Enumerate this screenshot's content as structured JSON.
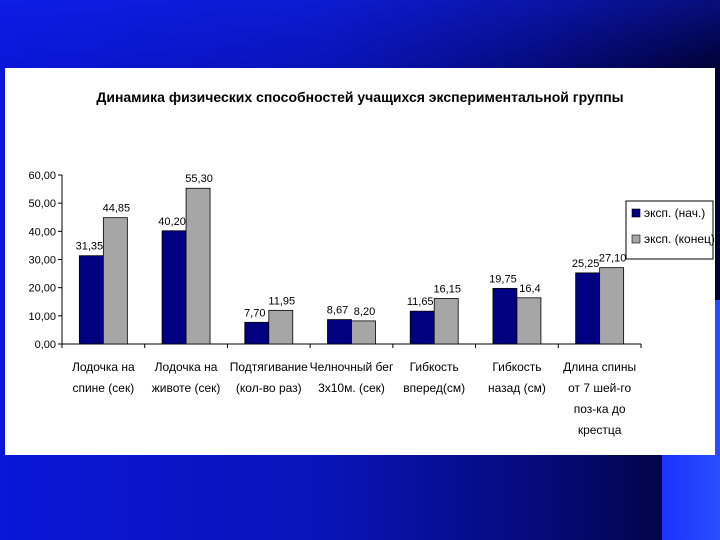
{
  "chart_data": {
    "type": "bar",
    "title": "Динамика физических способностей учащихся экспериментальной группы",
    "categories": [
      [
        "Лодочка на",
        "спине (сек)"
      ],
      [
        "Лодочка на",
        "животе (сек)"
      ],
      [
        "Подтягивание",
        "(кол-во раз)"
      ],
      [
        "Челночный бег",
        "3х10м. (сек)"
      ],
      [
        "Гибкость",
        "вперед(см)"
      ],
      [
        "Гибкость",
        "назад (см)"
      ],
      [
        "Длина спины",
        "от 7 шей-го",
        "поз-ка до",
        "крестца"
      ]
    ],
    "series": [
      {
        "name": "эксп. (нач.)",
        "color": "#000080",
        "values": [
          31.35,
          40.2,
          7.7,
          8.67,
          11.65,
          19.75,
          25.25
        ],
        "labels": [
          "31,35",
          "40,20",
          "7,70",
          "8,67",
          "11,65",
          "19,75",
          "25,25"
        ]
      },
      {
        "name": "эксп. (конец)",
        "color": "#a6a6a6",
        "values": [
          44.85,
          55.3,
          11.95,
          8.2,
          16.15,
          16.4,
          27.1
        ],
        "labels": [
          "44,85",
          "55,30",
          "11,95",
          "8,20",
          "16,15",
          "16,4",
          "27,10"
        ]
      }
    ],
    "ylim": [
      0,
      60
    ],
    "yticks": [
      0,
      10,
      20,
      30,
      40,
      50,
      60
    ],
    "ytick_labels": [
      "0,00",
      "10,00",
      "20,00",
      "30,00",
      "40,00",
      "50,00",
      "60,00"
    ],
    "legend_position": "right",
    "grid": false
  }
}
